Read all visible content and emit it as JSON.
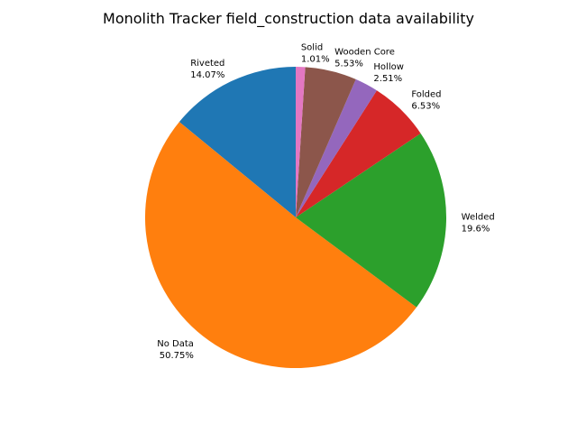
{
  "chart_data": {
    "type": "pie",
    "title": "Monolith Tracker field_construction data availability",
    "slices": [
      {
        "label": "Riveted",
        "value": 14.07,
        "pct_label": "14.07%",
        "color": "#1f77b4"
      },
      {
        "label": "No Data",
        "value": 50.75,
        "pct_label": "50.75%",
        "color": "#ff7f0e"
      },
      {
        "label": "Welded",
        "value": 19.6,
        "pct_label": "19.6%",
        "color": "#2ca02c"
      },
      {
        "label": "Folded",
        "value": 6.53,
        "pct_label": "6.53%",
        "color": "#d62728"
      },
      {
        "label": "Hollow",
        "value": 2.51,
        "pct_label": "2.51%",
        "color": "#9467bd"
      },
      {
        "label": "Wooden Core",
        "value": 5.53,
        "pct_label": "5.53%",
        "color": "#8c564b"
      },
      {
        "label": "Solid",
        "value": 1.01,
        "pct_label": "1.01%",
        "color": "#e377c2"
      }
    ],
    "start_angle": 90,
    "direction": "counterclockwise",
    "legend": "none"
  }
}
